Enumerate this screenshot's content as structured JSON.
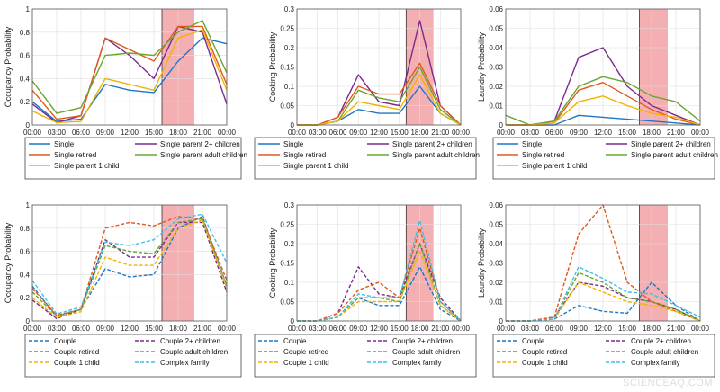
{
  "watermark": "SCIENCEAQ.COM",
  "colors": {
    "shade": "#f2a1a6",
    "single": "#1f77c4",
    "single_retired": "#e05a1c",
    "single_1child": "#f0b400",
    "single_2plus": "#7b2a8e",
    "single_adult": "#6aa531",
    "couple": "#1f77c4",
    "couple_retired": "#e05a1c",
    "couple_1child": "#f0b400",
    "couple_2plus": "#7b2a8e",
    "couple_adult": "#6aa531",
    "complex": "#3fbfe0"
  },
  "chart_data": [
    {
      "id": "occ-single",
      "type": "line",
      "ylabel": "Occupancy Probability",
      "ylim": [
        0,
        1
      ],
      "yticks": [
        "0",
        "0.2",
        "0.4",
        "0.6",
        "0.8",
        "1"
      ],
      "x": [
        0,
        3,
        6,
        9,
        12,
        15,
        18,
        21,
        24
      ],
      "xticks": [
        "00:00",
        "03:00",
        "06:00",
        "09:00",
        "12:00",
        "15:00",
        "18:00",
        "21:00",
        "00:00"
      ],
      "shade": [
        16,
        20
      ],
      "dashed": false,
      "series": [
        {
          "name": "Single",
          "color": "single",
          "values": [
            0.2,
            0.03,
            0.05,
            0.35,
            0.3,
            0.28,
            0.55,
            0.75,
            0.7
          ]
        },
        {
          "name": "Single parent 2+ children",
          "color": "single_2plus",
          "values": [
            0.18,
            0.02,
            0.08,
            0.75,
            0.6,
            0.4,
            0.85,
            0.8,
            0.18
          ]
        },
        {
          "name": "Single retired",
          "color": "single_retired",
          "values": [
            0.3,
            0.05,
            0.08,
            0.75,
            0.65,
            0.55,
            0.85,
            0.85,
            0.35
          ]
        },
        {
          "name": "Single parent adult children",
          "color": "single_adult",
          "values": [
            0.38,
            0.1,
            0.15,
            0.6,
            0.62,
            0.6,
            0.8,
            0.9,
            0.45
          ]
        },
        {
          "name": "Single parent 1 child",
          "color": "single_1child",
          "values": [
            0.12,
            0.02,
            0.03,
            0.4,
            0.35,
            0.3,
            0.75,
            0.82,
            0.3
          ]
        }
      ],
      "legend": [
        "Single",
        "Single parent 2+ children",
        "Single retired",
        "Single parent adult children",
        "Single parent 1 child"
      ]
    },
    {
      "id": "cook-single",
      "type": "line",
      "ylabel": "Cooking Probability",
      "ylim": [
        0,
        0.3
      ],
      "yticks": [
        "0",
        "0.05",
        "0.1",
        "0.15",
        "0.2",
        "0.25",
        "0.3"
      ],
      "x": [
        0,
        3,
        6,
        9,
        12,
        15,
        18,
        21,
        24
      ],
      "xticks": [
        "00:00",
        "03:00",
        "06:00",
        "09:00",
        "12:00",
        "15:00",
        "18:00",
        "21:00",
        "00:00"
      ],
      "shade": [
        16,
        20
      ],
      "dashed": false,
      "series": [
        {
          "name": "Single",
          "color": "single",
          "values": [
            0.0,
            0.0,
            0.01,
            0.04,
            0.03,
            0.03,
            0.1,
            0.03,
            0.0
          ]
        },
        {
          "name": "Single parent 2+ children",
          "color": "single_2plus",
          "values": [
            0.0,
            0.0,
            0.02,
            0.13,
            0.06,
            0.05,
            0.27,
            0.05,
            0.0
          ]
        },
        {
          "name": "Single retired",
          "color": "single_retired",
          "values": [
            0.0,
            0.0,
            0.02,
            0.1,
            0.08,
            0.08,
            0.16,
            0.05,
            0.0
          ]
        },
        {
          "name": "Single parent adult children",
          "color": "single_adult",
          "values": [
            0.0,
            0.0,
            0.01,
            0.09,
            0.07,
            0.06,
            0.15,
            0.04,
            0.0
          ]
        },
        {
          "name": "Single parent 1 child",
          "color": "single_1child",
          "values": [
            0.0,
            0.0,
            0.01,
            0.06,
            0.05,
            0.04,
            0.13,
            0.03,
            0.0
          ]
        }
      ],
      "legend": [
        "Single",
        "Single parent 2+ children",
        "Single retired",
        "Single parent adult children",
        "Single parent 1 child"
      ]
    },
    {
      "id": "laund-single",
      "type": "line",
      "ylabel": "Laundry Probability",
      "ylim": [
        0,
        0.06
      ],
      "yticks": [
        "0",
        "0.01",
        "0.02",
        "0.03",
        "0.04",
        "0.05",
        "0.06"
      ],
      "x": [
        0,
        3,
        6,
        9,
        12,
        15,
        18,
        21,
        24
      ],
      "xticks": [
        "00:00",
        "03:00",
        "06:00",
        "09:00",
        "12:00",
        "15:00",
        "18:00",
        "21:00",
        "00:00"
      ],
      "shade": [
        16.5,
        20
      ],
      "dashed": false,
      "series": [
        {
          "name": "Single",
          "color": "single",
          "values": [
            0.0,
            0.0,
            0.0,
            0.005,
            0.004,
            0.003,
            0.002,
            0.001,
            0.0
          ]
        },
        {
          "name": "Single parent 2+ children",
          "color": "single_2plus",
          "values": [
            0.0,
            0.0,
            0.002,
            0.035,
            0.04,
            0.02,
            0.01,
            0.005,
            0.0
          ]
        },
        {
          "name": "Single retired",
          "color": "single_retired",
          "values": [
            0.0,
            0.0,
            0.001,
            0.018,
            0.022,
            0.015,
            0.008,
            0.003,
            0.0
          ]
        },
        {
          "name": "Single parent adult children",
          "color": "single_adult",
          "values": [
            0.005,
            0.0,
            0.002,
            0.02,
            0.025,
            0.022,
            0.015,
            0.012,
            0.002
          ]
        },
        {
          "name": "Single parent 1 child",
          "color": "single_1child",
          "values": [
            0.0,
            0.0,
            0.001,
            0.012,
            0.015,
            0.01,
            0.006,
            0.004,
            0.0
          ]
        }
      ],
      "legend": [
        "Single",
        "Single parent 2+ children",
        "Single retired",
        "Single parent adult children",
        "Single parent 1 child"
      ]
    },
    {
      "id": "occ-couple",
      "type": "line",
      "ylabel": "Occupancy Probability",
      "ylim": [
        0,
        1
      ],
      "yticks": [
        "0",
        "0.2",
        "0.4",
        "0.6",
        "0.8",
        "1"
      ],
      "x": [
        0,
        3,
        6,
        9,
        12,
        15,
        18,
        21,
        24
      ],
      "xticks": [
        "00:00",
        "03:00",
        "06:00",
        "09:00",
        "12:00",
        "15:00",
        "18:00",
        "21:00",
        "00:00"
      ],
      "shade": [
        16,
        20
      ],
      "dashed": true,
      "series": [
        {
          "name": "Couple",
          "color": "couple",
          "values": [
            0.3,
            0.04,
            0.1,
            0.45,
            0.38,
            0.4,
            0.8,
            0.9,
            0.3
          ]
        },
        {
          "name": "Couple 2+ children",
          "color": "couple_2plus",
          "values": [
            0.18,
            0.02,
            0.1,
            0.7,
            0.55,
            0.55,
            0.85,
            0.85,
            0.25
          ]
        },
        {
          "name": "Couple retired",
          "color": "couple_retired",
          "values": [
            0.28,
            0.05,
            0.1,
            0.8,
            0.85,
            0.82,
            0.9,
            0.88,
            0.35
          ]
        },
        {
          "name": "Couple adult children",
          "color": "couple_adult",
          "values": [
            0.25,
            0.04,
            0.1,
            0.65,
            0.6,
            0.58,
            0.85,
            0.88,
            0.3
          ]
        },
        {
          "name": "Couple 1 child",
          "color": "couple_1child",
          "values": [
            0.2,
            0.03,
            0.08,
            0.55,
            0.48,
            0.48,
            0.8,
            0.87,
            0.28
          ]
        },
        {
          "name": "Complex family",
          "color": "complex",
          "values": [
            0.35,
            0.06,
            0.12,
            0.68,
            0.65,
            0.7,
            0.88,
            0.92,
            0.5
          ]
        }
      ],
      "legend": [
        "Couple",
        "Couple 2+ children",
        "Couple retired",
        "Couple adult children",
        "Couple 1 child",
        "Complex family"
      ]
    },
    {
      "id": "cook-couple",
      "type": "line",
      "ylabel": "Cooking Probability",
      "ylim": [
        0,
        0.3
      ],
      "yticks": [
        "0",
        "0.05",
        "0.1",
        "0.15",
        "0.2",
        "0.25",
        "0.3"
      ],
      "x": [
        0,
        3,
        6,
        9,
        12,
        15,
        18,
        21,
        24
      ],
      "xticks": [
        "00:00",
        "03:00",
        "06:00",
        "09:00",
        "12:00",
        "15:00",
        "18:00",
        "21:00",
        "00:00"
      ],
      "shade": [
        16,
        20
      ],
      "dashed": true,
      "series": [
        {
          "name": "Couple",
          "color": "couple",
          "values": [
            0.0,
            0.0,
            0.01,
            0.06,
            0.04,
            0.04,
            0.14,
            0.03,
            0.0
          ]
        },
        {
          "name": "Couple 2+ children",
          "color": "couple_2plus",
          "values": [
            0.0,
            0.0,
            0.02,
            0.14,
            0.07,
            0.06,
            0.2,
            0.06,
            0.0
          ]
        },
        {
          "name": "Couple retired",
          "color": "couple_retired",
          "values": [
            0.0,
            0.0,
            0.02,
            0.08,
            0.1,
            0.06,
            0.24,
            0.05,
            0.0
          ]
        },
        {
          "name": "Couple adult children",
          "color": "couple_adult",
          "values": [
            0.0,
            0.0,
            0.01,
            0.06,
            0.06,
            0.05,
            0.2,
            0.04,
            0.0
          ]
        },
        {
          "name": "Couple 1 child",
          "color": "couple_1child",
          "values": [
            0.0,
            0.0,
            0.01,
            0.05,
            0.05,
            0.05,
            0.18,
            0.04,
            0.0
          ]
        },
        {
          "name": "Complex family",
          "color": "complex",
          "values": [
            0.0,
            0.0,
            0.01,
            0.07,
            0.06,
            0.06,
            0.26,
            0.05,
            0.0
          ]
        }
      ],
      "legend": [
        "Couple",
        "Couple 2+ children",
        "Couple retired",
        "Couple adult children",
        "Couple 1 child",
        "Complex family"
      ]
    },
    {
      "id": "laund-couple",
      "type": "line",
      "ylabel": "Laundry Probability",
      "ylim": [
        0,
        0.06
      ],
      "yticks": [
        "0",
        "0.01",
        "0.02",
        "0.03",
        "0.04",
        "0.05",
        "0.06"
      ],
      "x": [
        0,
        3,
        6,
        9,
        12,
        15,
        18,
        21,
        24
      ],
      "xticks": [
        "00:00",
        "03:00",
        "06:00",
        "09:00",
        "12:00",
        "15:00",
        "18:00",
        "21:00",
        "00:00"
      ],
      "shade": [
        16.5,
        20
      ],
      "dashed": true,
      "series": [
        {
          "name": "Couple",
          "color": "couple",
          "values": [
            0.0,
            0.0,
            0.001,
            0.008,
            0.005,
            0.004,
            0.02,
            0.008,
            0.0
          ]
        },
        {
          "name": "Couple 2+ children",
          "color": "couple_2plus",
          "values": [
            0.0,
            0.0,
            0.002,
            0.02,
            0.018,
            0.012,
            0.01,
            0.006,
            0.0
          ]
        },
        {
          "name": "Couple retired",
          "color": "couple_retired",
          "values": [
            0.0,
            0.0,
            0.002,
            0.045,
            0.06,
            0.02,
            0.01,
            0.005,
            0.0
          ]
        },
        {
          "name": "Couple adult children",
          "color": "couple_adult",
          "values": [
            0.0,
            0.0,
            0.001,
            0.025,
            0.02,
            0.012,
            0.01,
            0.006,
            0.0
          ]
        },
        {
          "name": "Couple 1 child",
          "color": "couple_1child",
          "values": [
            0.0,
            0.0,
            0.001,
            0.02,
            0.015,
            0.01,
            0.008,
            0.005,
            0.0
          ]
        },
        {
          "name": "Complex family",
          "color": "complex",
          "values": [
            0.0,
            0.0,
            0.001,
            0.028,
            0.022,
            0.015,
            0.014,
            0.008,
            0.002
          ]
        }
      ],
      "legend": [
        "Couple",
        "Couple 2+ children",
        "Couple retired",
        "Couple adult children",
        "Couple 1 child",
        "Complex family"
      ]
    }
  ]
}
